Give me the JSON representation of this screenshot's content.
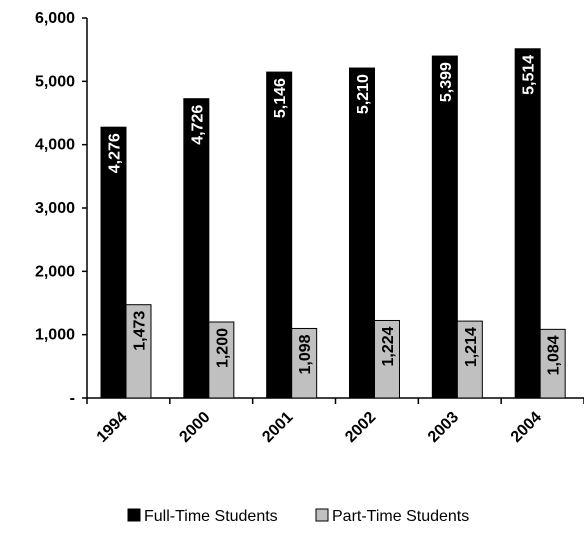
{
  "chart_data": {
    "type": "bar",
    "categories": [
      "1994",
      "2000",
      "2001",
      "2002",
      "2003",
      "2004"
    ],
    "series": [
      {
        "name": "Full-Time Students",
        "values": [
          4276,
          4726,
          5146,
          5210,
          5399,
          5514
        ],
        "labels": [
          "4,276",
          "4,726",
          "5,146",
          "5,210",
          "5,399",
          "5,514"
        ],
        "color": "#000000",
        "label_color": "#ffffff"
      },
      {
        "name": "Part-Time Students",
        "values": [
          1473,
          1200,
          1098,
          1224,
          1214,
          1084
        ],
        "labels": [
          "1,473",
          "1,200",
          "1,098",
          "1,224",
          "1,214",
          "1,084"
        ],
        "color": "#c0c0c0",
        "label_color": "#000000"
      }
    ],
    "y_ticks": [
      0,
      1000,
      2000,
      3000,
      4000,
      5000,
      6000
    ],
    "y_tick_labels": [
      "-",
      "1,000",
      "2,000",
      "3,000",
      "4,000",
      "5,000",
      "6,000"
    ],
    "ylim": [
      0,
      6000
    ],
    "title": "",
    "xlabel": "",
    "ylabel": "",
    "grid": false,
    "legend_position": "bottom"
  }
}
